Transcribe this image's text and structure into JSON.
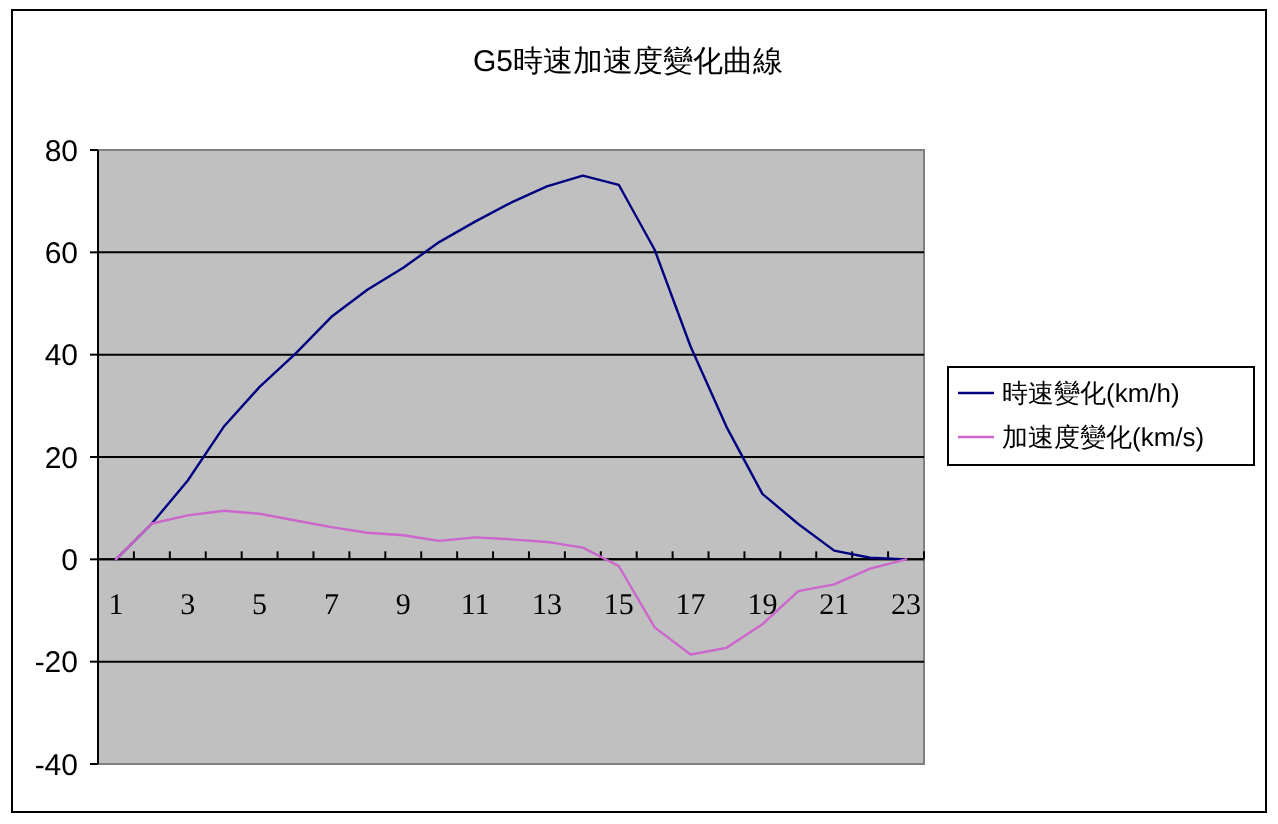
{
  "chart_data": {
    "type": "line",
    "title": "G5時速加速度變化曲線",
    "x": [
      1,
      2,
      3,
      4,
      5,
      6,
      7,
      8,
      9,
      10,
      11,
      12,
      13,
      14,
      15,
      16,
      17,
      18,
      19,
      20,
      21,
      22,
      23
    ],
    "series": [
      {
        "name": "時速變化(km/h)",
        "color": "#000080",
        "values": [
          0,
          7,
          15.4,
          25.9,
          33.7,
          40.2,
          47.4,
          52.7,
          57,
          62,
          66,
          69.7,
          72.9,
          75,
          73.2,
          60.5,
          41.6,
          25.9,
          12.8,
          6.9,
          1.7,
          0.3,
          0
        ]
      },
      {
        "name": "加速度變化(km/s)",
        "color": "#cc66cc",
        "values": [
          0,
          7,
          8.6,
          9.5,
          8.9,
          7.6,
          6.3,
          5.2,
          4.7,
          3.6,
          4.3,
          3.9,
          3.4,
          2.3,
          -1.3,
          -13.3,
          -18.6,
          -17.3,
          -12.7,
          -6.2,
          -4.9,
          -1.8,
          0
        ]
      }
    ],
    "xlim": [
      0.5,
      23.5
    ],
    "xticks": [
      {
        "value": 0.5,
        "label": null
      },
      1,
      {
        "value": 1.5,
        "label": null
      },
      {
        "value": 2.5,
        "label": null
      },
      3,
      {
        "value": 3.5,
        "label": null
      },
      {
        "value": 4.5,
        "label": null
      },
      5,
      {
        "value": 5.5,
        "label": null
      },
      {
        "value": 6.5,
        "label": null
      },
      7,
      {
        "value": 7.5,
        "label": null
      },
      {
        "value": 8.5,
        "label": null
      },
      9,
      {
        "value": 9.5,
        "label": null
      },
      {
        "value": 10.5,
        "label": null
      },
      11,
      {
        "value": 11.5,
        "label": null
      },
      {
        "value": 12.5,
        "label": null
      },
      13,
      {
        "value": 13.5,
        "label": null
      },
      {
        "value": 14.5,
        "label": null
      },
      15,
      {
        "value": 15.5,
        "label": null
      },
      {
        "value": 16.5,
        "label": null
      },
      17,
      {
        "value": 17.5,
        "label": null
      },
      {
        "value": 18.5,
        "label": null
      },
      19,
      {
        "value": 19.5,
        "label": null
      },
      {
        "value": 20.5,
        "label": null
      },
      21,
      {
        "value": 21.5,
        "label": null
      },
      {
        "value": 22.5,
        "label": null
      },
      23,
      {
        "value": 23.5,
        "label": null
      }
    ],
    "ylim": [
      -40,
      80
    ],
    "yticks": [
      -40,
      -20,
      0,
      20,
      40,
      60,
      80
    ],
    "grid": "y",
    "legend": "right"
  }
}
